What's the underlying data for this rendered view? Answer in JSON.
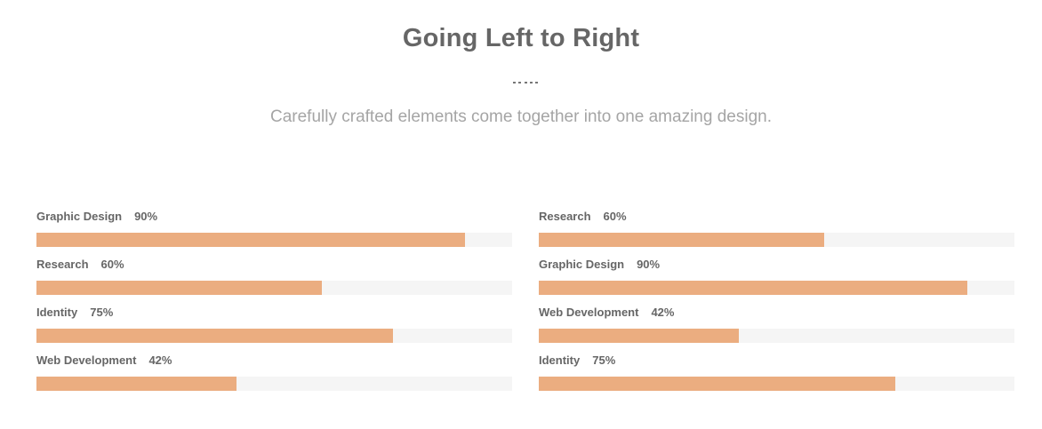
{
  "header": {
    "title": "Going Left to Right",
    "subtitle": "Carefully crafted elements come together into one amazing design."
  },
  "colors": {
    "bar_fill": "#ebad80",
    "bar_track": "#f5f5f5"
  },
  "left_skills": [
    {
      "name": "Graphic Design",
      "percent_label": "90%",
      "value": 90
    },
    {
      "name": "Research",
      "percent_label": "60%",
      "value": 60
    },
    {
      "name": "Identity",
      "percent_label": "75%",
      "value": 75
    },
    {
      "name": "Web Development",
      "percent_label": "42%",
      "value": 42
    }
  ],
  "right_skills": [
    {
      "name": "Research",
      "percent_label": "60%",
      "value": 60
    },
    {
      "name": "Graphic Design",
      "percent_label": "90%",
      "value": 90
    },
    {
      "name": "Web Development",
      "percent_label": "42%",
      "value": 42
    },
    {
      "name": "Identity",
      "percent_label": "75%",
      "value": 75
    }
  ]
}
